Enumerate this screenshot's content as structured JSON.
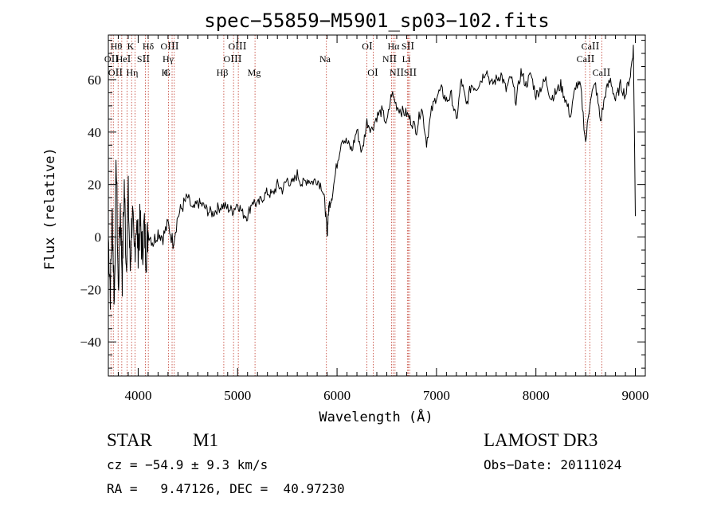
{
  "chart_data": {
    "type": "line",
    "title": "spec−55859−M5901_sp03−102.fits",
    "xlabel": "Wavelength (Å)",
    "ylabel": "Flux (relative)",
    "xlim": [
      3700,
      9100
    ],
    "ylim": [
      -53,
      77
    ],
    "xticks": [
      4000,
      5000,
      6000,
      7000,
      8000,
      9000
    ],
    "yticks": [
      -40,
      -20,
      0,
      20,
      40,
      60
    ],
    "ytick_labels": [
      "−40",
      "−20",
      "0",
      "20",
      "40",
      "60"
    ],
    "grid": false,
    "series": [
      {
        "name": "flux",
        "color": "#000000",
        "x": [
          3700,
          3720,
          3740,
          3760,
          3780,
          3800,
          3820,
          3840,
          3860,
          3880,
          3900,
          3920,
          3940,
          3960,
          3980,
          4000,
          4020,
          4040,
          4060,
          4080,
          4100,
          4150,
          4200,
          4250,
          4300,
          4350,
          4400,
          4450,
          4500,
          4550,
          4600,
          4650,
          4700,
          4750,
          4800,
          4850,
          4900,
          4950,
          5000,
          5050,
          5100,
          5150,
          5200,
          5250,
          5300,
          5350,
          5400,
          5450,
          5500,
          5550,
          5600,
          5650,
          5700,
          5750,
          5800,
          5850,
          5880,
          5900,
          5910,
          5920,
          5950,
          6000,
          6050,
          6100,
          6150,
          6200,
          6250,
          6300,
          6350,
          6400,
          6450,
          6500,
          6550,
          6600,
          6650,
          6700,
          6750,
          6800,
          6850,
          6900,
          6950,
          7000,
          7050,
          7100,
          7150,
          7200,
          7250,
          7300,
          7350,
          7400,
          7450,
          7500,
          7550,
          7600,
          7650,
          7700,
          7750,
          7800,
          7850,
          7900,
          7950,
          8000,
          8050,
          8100,
          8150,
          8200,
          8250,
          8300,
          8350,
          8400,
          8450,
          8500,
          8550,
          8600,
          8650,
          8700,
          8750,
          8800,
          8850,
          8900,
          8950,
          8980,
          9000
        ],
        "y": [
          0,
          -20,
          8,
          -25,
          30,
          -22,
          12,
          -15,
          20,
          -10,
          15,
          -12,
          10,
          -8,
          6,
          -3,
          5,
          -5,
          4,
          -6,
          2,
          -2,
          2,
          0,
          5,
          -2,
          8,
          12,
          15,
          10,
          13,
          12,
          10,
          9,
          11,
          12,
          11,
          10,
          13,
          9,
          8,
          14,
          12,
          15,
          17,
          16,
          20,
          18,
          22,
          20,
          24,
          20,
          22,
          21,
          22,
          19,
          12,
          0,
          8,
          12,
          16,
          28,
          38,
          36,
          33,
          41,
          32,
          44,
          41,
          46,
          48,
          43,
          55,
          50,
          48,
          47,
          44,
          41,
          50,
          36,
          48,
          54,
          56,
          52,
          54,
          44,
          60,
          50,
          58,
          57,
          60,
          64,
          58,
          60,
          62,
          56,
          61,
          52,
          63,
          58,
          62,
          54,
          57,
          60,
          53,
          55,
          58,
          52,
          46,
          58,
          57,
          36,
          54,
          58,
          44,
          55,
          60,
          52,
          58,
          54,
          62,
          72,
          8
        ]
      }
    ],
    "line_marks": [
      {
        "x": 3726,
        "labels": [
          "OⅠⅠ"
        ]
      },
      {
        "x": 3750,
        "labels": [
          "Hθ"
        ]
      },
      {
        "x": 3798,
        "labels": [
          "Hη"
        ]
      },
      {
        "x": 3835,
        "labels": [
          ""
        ]
      },
      {
        "x": 3889,
        "labels": [
          "HeⅠ"
        ]
      },
      {
        "x": 3934,
        "labels": [
          "K"
        ]
      },
      {
        "x": 3968,
        "labels": [
          "H"
        ]
      },
      {
        "x": 4072,
        "labels": [
          "SⅠⅠ"
        ]
      },
      {
        "x": 4102,
        "labels": [
          "Hδ"
        ]
      },
      {
        "x": 4304,
        "labels": [
          "G"
        ]
      },
      {
        "x": 4341,
        "labels": [
          "Hγ"
        ]
      },
      {
        "x": 4363,
        "labels": [
          "OⅠⅠⅠ"
        ]
      },
      {
        "x": 4861,
        "labels": [
          "Hβ"
        ]
      },
      {
        "x": 4959,
        "labels": [
          "OⅠⅠⅠ"
        ]
      },
      {
        "x": 5007,
        "labels": [
          "OⅠⅠⅠ"
        ]
      },
      {
        "x": 5175,
        "labels": [
          "Mg"
        ]
      },
      {
        "x": 5893,
        "labels": [
          "Na"
        ]
      },
      {
        "x": 6300,
        "labels": [
          "OⅠ"
        ]
      },
      {
        "x": 6364,
        "labels": [
          "OⅠ"
        ]
      },
      {
        "x": 6548,
        "labels": [
          "NⅠⅠ"
        ]
      },
      {
        "x": 6563,
        "labels": [
          "Hα"
        ]
      },
      {
        "x": 6583,
        "labels": [
          "NⅠⅠ"
        ]
      },
      {
        "x": 6707,
        "labels": [
          "Li"
        ]
      },
      {
        "x": 6716,
        "labels": [
          "SⅠⅠ"
        ]
      },
      {
        "x": 6731,
        "labels": [
          "SⅠⅠ"
        ]
      },
      {
        "x": 8498,
        "labels": [
          "CaⅠⅠ"
        ]
      },
      {
        "x": 8542,
        "labels": [
          "CaⅠⅠ"
        ]
      },
      {
        "x": 8662,
        "labels": [
          "CaⅠⅠ"
        ]
      }
    ]
  },
  "label_rows": {
    "row1": [
      "Hθ",
      "K",
      "Hδ",
      "OⅠⅠⅠ",
      "OⅠⅠⅠ",
      "OⅠ",
      "Hα",
      "SⅠⅠ",
      "CaⅠⅠ"
    ],
    "row2": [
      "OⅠⅠ",
      "HeⅠ",
      "SⅠⅠ",
      "Hγ",
      "OⅠⅠⅠ",
      "Na",
      "NⅠⅠ",
      "Li",
      "CaⅠⅠ"
    ],
    "row3": [
      "OⅠⅠ",
      "Hη",
      "H",
      "G",
      "Hβ",
      "Mg",
      "OⅠ",
      "NⅠⅠ",
      "SⅠⅠ",
      "CaⅠⅠ"
    ]
  },
  "info": {
    "class": "STAR",
    "subclass": "M1",
    "survey": "LAMOST DR3",
    "cz": "cz = −54.9 ± 9.3 km/s",
    "obs_date": "Obs−Date: 20111024",
    "radec": "RA =   9.47126, DEC =  40.97230"
  }
}
